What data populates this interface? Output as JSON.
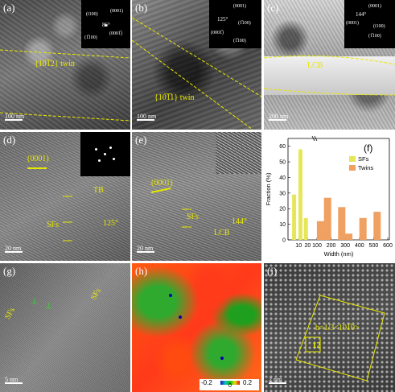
{
  "panels": {
    "a": {
      "label": "(a)",
      "scale": "100 nm",
      "twin": "{10̅1̅2} twin",
      "angle": "86°",
      "spots": [
        "(ī100)",
        "(0001)",
        "(1̅100)",
        "(0001̅)"
      ]
    },
    "b": {
      "label": "(b)",
      "scale": "100 nm",
      "twin": "{10̅1̅1} twin",
      "angle": "125°",
      "spots": [
        "(0001)",
        "(0001̅)",
        "(1̅100)",
        "(1̅100)"
      ]
    },
    "c": {
      "label": "(c)",
      "scale": "200 nm",
      "lcb": "LCB",
      "angle": "144°",
      "spots": [
        "(0001)",
        "(0001)",
        "(ī100)",
        "(1̅100)"
      ]
    },
    "d": {
      "label": "(d)",
      "scale": "20 nm",
      "plane": "(0001)",
      "tb": "TB",
      "sfs": "SFs",
      "angle": "125°"
    },
    "e": {
      "label": "(e)",
      "scale": "20 nm",
      "plane": "(0001)",
      "sfs": "SFs",
      "lcb": "LCB",
      "angle": "144°"
    },
    "g": {
      "label": "(g)",
      "scale": "5 nm",
      "sfs_left": "SFs",
      "sfs_right": "SFs"
    },
    "h": {
      "label": "(h)",
      "colorbar_min": "-0.2",
      "colorbar_mid": "0",
      "colorbar_max": "0.2"
    },
    "i": {
      "label": "(i)",
      "scale": "2 nm",
      "burgers": "b=1/3<101̅0>",
      "count": "12"
    }
  },
  "colors": {
    "annotation": "#e8e800",
    "sfs_bar": "#e6e65a",
    "twins_bar": "#f0a060"
  },
  "chart_data": {
    "type": "bar",
    "label": "(f)",
    "xlabel": "Width (nm)",
    "ylabel": "Fraction (%)",
    "ylim": [
      0,
      65
    ],
    "yticks": [
      0,
      10,
      20,
      30,
      40,
      50,
      60
    ],
    "xticks": [
      "10",
      "20",
      "100",
      "200",
      "300",
      "400",
      "500",
      "600"
    ],
    "series": [
      {
        "name": "SFs",
        "color": "#e6e65a",
        "x": [
          5,
          12,
          18
        ],
        "values": [
          29,
          58,
          14
        ]
      },
      {
        "name": "Twins",
        "color": "#f0a060",
        "x": [
          125,
          175,
          275,
          325,
          425,
          525
        ],
        "values": [
          12,
          27,
          21,
          4,
          14,
          18
        ]
      }
    ]
  }
}
